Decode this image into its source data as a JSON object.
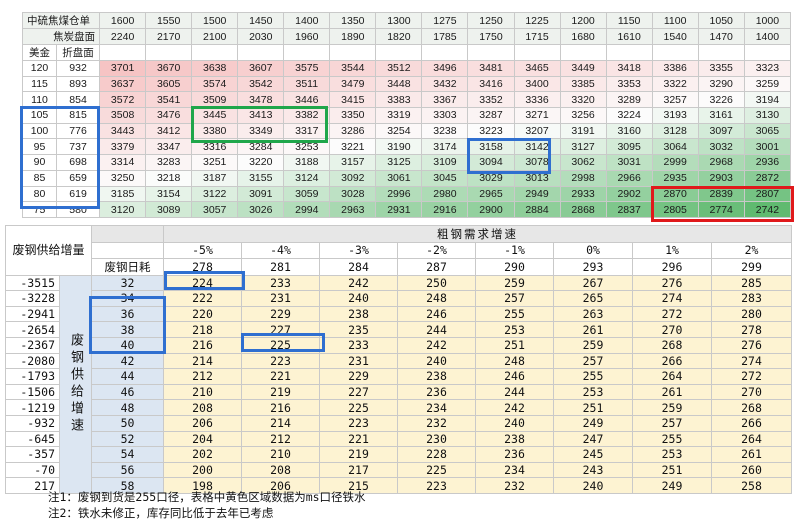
{
  "top": {
    "label_inventory": "中硫焦煤仓单",
    "label_coke_basis": "焦炭盘面",
    "label_usd": "美金",
    "label_cny_basis": "折盘面",
    "inventory_values": [
      "1600",
      "1550",
      "1500",
      "1450",
      "1400",
      "1350",
      "1300",
      "1275",
      "1250",
      "1225",
      "1200",
      "1150",
      "1100",
      "1050",
      "1000"
    ],
    "coke_values": [
      "2240",
      "2170",
      "2100",
      "2030",
      "1960",
      "1890",
      "1820",
      "1785",
      "1750",
      "1715",
      "1680",
      "1610",
      "1540",
      "1470",
      "1400"
    ],
    "rows": [
      {
        "usd": "120",
        "cny": "932",
        "vals": [
          "3701",
          "3670",
          "3638",
          "3607",
          "3575",
          "3544",
          "3512",
          "3496",
          "3481",
          "3465",
          "3449",
          "3418",
          "3386",
          "3355",
          "3323"
        ]
      },
      {
        "usd": "115",
        "cny": "893",
        "vals": [
          "3637",
          "3605",
          "3574",
          "3542",
          "3511",
          "3479",
          "3448",
          "3432",
          "3416",
          "3400",
          "3385",
          "3353",
          "3322",
          "3290",
          "3259"
        ]
      },
      {
        "usd": "110",
        "cny": "854",
        "vals": [
          "3572",
          "3541",
          "3509",
          "3478",
          "3446",
          "3415",
          "3383",
          "3367",
          "3352",
          "3336",
          "3320",
          "3289",
          "3257",
          "3226",
          "3194"
        ]
      },
      {
        "usd": "105",
        "cny": "815",
        "vals": [
          "3508",
          "3476",
          "3445",
          "3413",
          "3382",
          "3350",
          "3319",
          "3303",
          "3287",
          "3271",
          "3256",
          "3224",
          "3193",
          "3161",
          "3130"
        ]
      },
      {
        "usd": "100",
        "cny": "776",
        "vals": [
          "3443",
          "3412",
          "3380",
          "3349",
          "3317",
          "3286",
          "3254",
          "3238",
          "3223",
          "3207",
          "3191",
          "3160",
          "3128",
          "3097",
          "3065"
        ]
      },
      {
        "usd": "95",
        "cny": "737",
        "vals": [
          "3379",
          "3347",
          "3316",
          "3284",
          "3253",
          "3221",
          "3190",
          "3174",
          "3158",
          "3142",
          "3127",
          "3095",
          "3064",
          "3032",
          "3001"
        ]
      },
      {
        "usd": "90",
        "cny": "698",
        "vals": [
          "3314",
          "3283",
          "3251",
          "3220",
          "3188",
          "3157",
          "3125",
          "3109",
          "3094",
          "3078",
          "3062",
          "3031",
          "2999",
          "2968",
          "2936"
        ]
      },
      {
        "usd": "85",
        "cny": "659",
        "vals": [
          "3250",
          "3218",
          "3187",
          "3155",
          "3124",
          "3092",
          "3061",
          "3045",
          "3029",
          "3013",
          "2998",
          "2966",
          "2935",
          "2903",
          "2872"
        ]
      },
      {
        "usd": "80",
        "cny": "619",
        "vals": [
          "3185",
          "3154",
          "3122",
          "3091",
          "3059",
          "3028",
          "2996",
          "2980",
          "2965",
          "2949",
          "2933",
          "2902",
          "2870",
          "2839",
          "2807"
        ]
      },
      {
        "usd": "75",
        "cny": "580",
        "vals": [
          "3120",
          "3089",
          "3057",
          "3026",
          "2994",
          "2963",
          "2931",
          "2916",
          "2900",
          "2884",
          "2868",
          "2837",
          "2805",
          "2774",
          "2742"
        ]
      }
    ]
  },
  "bottom": {
    "corner_label": "废钢供给增量",
    "title": "粗钢需求增速",
    "usage_label": "废钢日耗",
    "side_label": "废钢供给增速",
    "growth": [
      "-5%",
      "-4%",
      "-3%",
      "-2%",
      "-1%",
      "0%",
      "1%",
      "2%"
    ],
    "usage": [
      "278",
      "281",
      "284",
      "287",
      "290",
      "293",
      "296",
      "299"
    ],
    "rows": [
      {
        "supply": "-3515",
        "rate": "32",
        "vals": [
          "224",
          "233",
          "242",
          "250",
          "259",
          "267",
          "276",
          "285"
        ]
      },
      {
        "supply": "-3228",
        "rate": "34",
        "vals": [
          "222",
          "231",
          "240",
          "248",
          "257",
          "265",
          "274",
          "283"
        ]
      },
      {
        "supply": "-2941",
        "rate": "36",
        "vals": [
          "220",
          "229",
          "238",
          "246",
          "255",
          "263",
          "272",
          "280"
        ]
      },
      {
        "supply": "-2654",
        "rate": "38",
        "vals": [
          "218",
          "227",
          "235",
          "244",
          "253",
          "261",
          "270",
          "278"
        ]
      },
      {
        "supply": "-2367",
        "rate": "40",
        "vals": [
          "216",
          "225",
          "233",
          "242",
          "251",
          "259",
          "268",
          "276"
        ]
      },
      {
        "supply": "-2080",
        "rate": "42",
        "vals": [
          "214",
          "223",
          "231",
          "240",
          "248",
          "257",
          "266",
          "274"
        ]
      },
      {
        "supply": "-1793",
        "rate": "44",
        "vals": [
          "212",
          "221",
          "229",
          "238",
          "246",
          "255",
          "264",
          "272"
        ]
      },
      {
        "supply": "-1506",
        "rate": "46",
        "vals": [
          "210",
          "219",
          "227",
          "236",
          "244",
          "253",
          "261",
          "270"
        ]
      },
      {
        "supply": "-1219",
        "rate": "48",
        "vals": [
          "208",
          "216",
          "225",
          "234",
          "242",
          "251",
          "259",
          "268"
        ]
      },
      {
        "supply": "-932",
        "rate": "50",
        "vals": [
          "206",
          "214",
          "223",
          "232",
          "240",
          "249",
          "257",
          "266"
        ]
      },
      {
        "supply": "-645",
        "rate": "52",
        "vals": [
          "204",
          "212",
          "221",
          "230",
          "238",
          "247",
          "255",
          "264"
        ]
      },
      {
        "supply": "-357",
        "rate": "54",
        "vals": [
          "202",
          "210",
          "219",
          "228",
          "236",
          "245",
          "253",
          "261"
        ]
      },
      {
        "supply": "-70",
        "rate": "56",
        "vals": [
          "200",
          "208",
          "217",
          "225",
          "234",
          "243",
          "251",
          "260"
        ]
      },
      {
        "supply": "217",
        "rate": "58",
        "vals": [
          "198",
          "206",
          "215",
          "223",
          "232",
          "240",
          "249",
          "258"
        ]
      }
    ]
  },
  "notes": [
    "注1：废钢到货是255口径，表格中黄色区域数据为ms口径铁水",
    "注2：铁水未修正，库存同比低于去年已考虑"
  ],
  "colors": {
    "highlight_blue": "#2f6fd0",
    "highlight_green": "#1fa64a",
    "highlight_red": "#e0191b",
    "yellow_fill": "#fdf3d2",
    "blue_fill": "#dce6f2"
  }
}
